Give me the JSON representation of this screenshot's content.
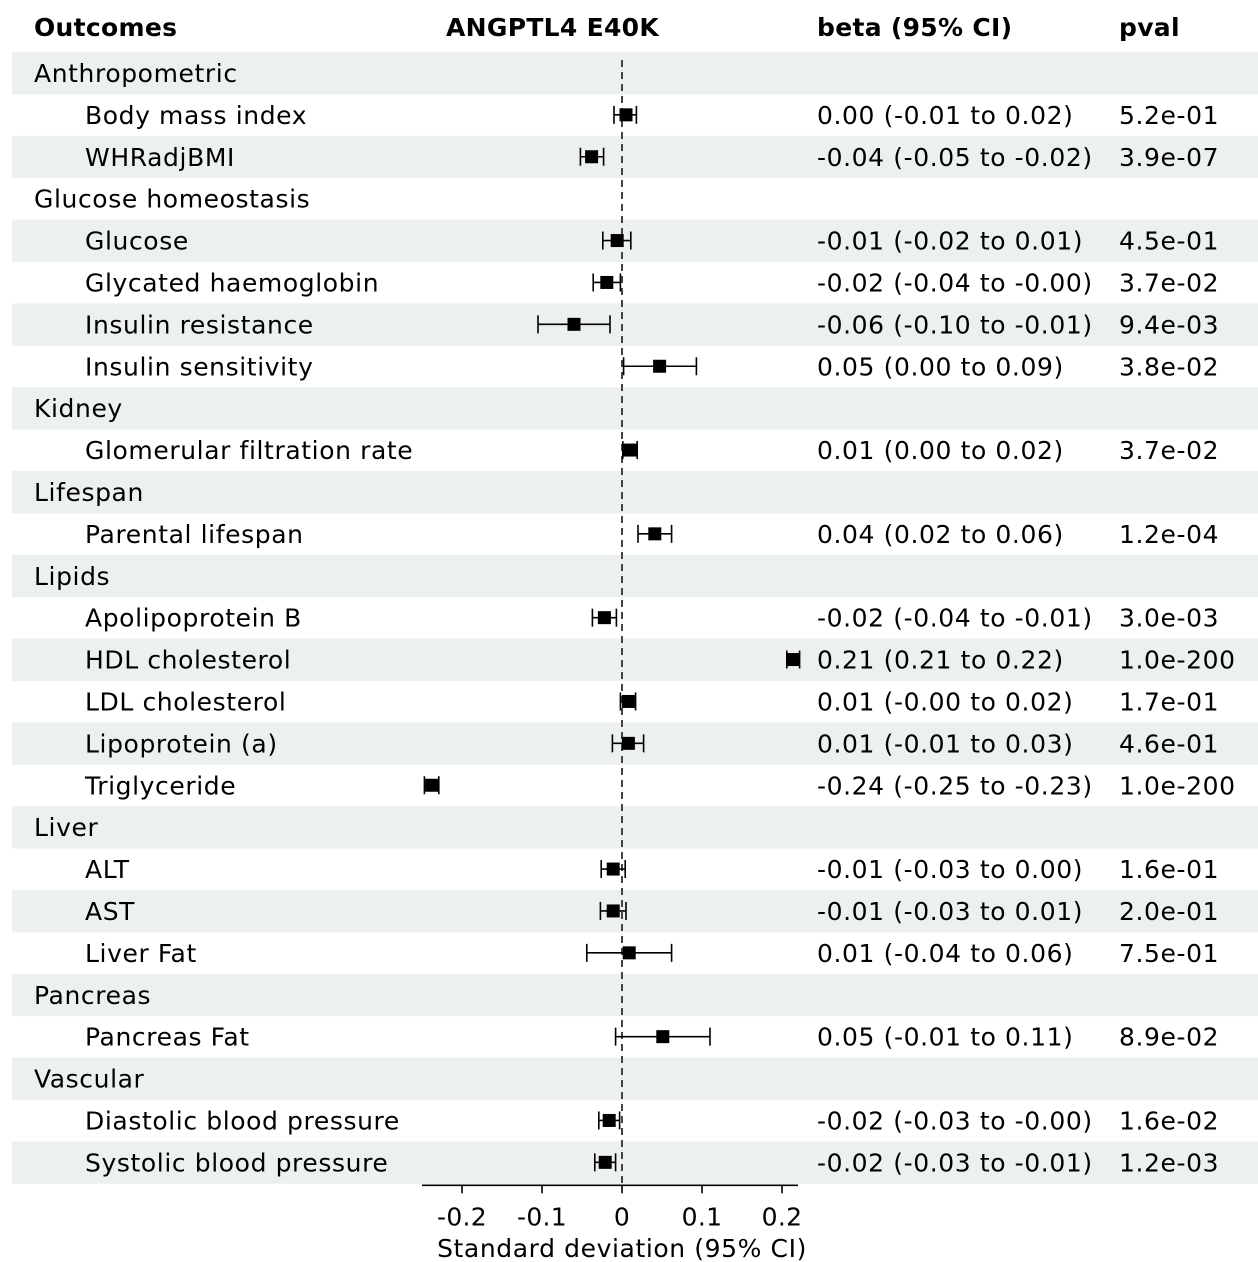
{
  "chart_data": {
    "type": "forest",
    "title": "ANGPTL4 E40K",
    "xlabel": "Standard deviation (95% CI)",
    "xlim": [
      -0.25,
      0.22
    ],
    "xticks": [
      -0.2,
      -0.1,
      0,
      0.1,
      0.2
    ],
    "xtick_labels": [
      "-0.2",
      "-0.1",
      "0",
      "0.1",
      "0.2"
    ],
    "reference_line": 0,
    "columns": {
      "outcomes": "Outcomes",
      "beta": "beta (95% CI)",
      "pval": "pval"
    },
    "rows": [
      {
        "group": "Anthropometric"
      },
      {
        "label": "Body mass index",
        "beta": 0.005,
        "lo": -0.01,
        "hi": 0.018,
        "beta_text": "0.00 (-0.01 to 0.02)",
        "pval": "5.2e-01"
      },
      {
        "label": "WHRadjBMI",
        "beta": -0.038,
        "lo": -0.052,
        "hi": -0.023,
        "beta_text": "-0.04 (-0.05 to -0.02)",
        "pval": "3.9e-07"
      },
      {
        "group": "Glucose homeostasis"
      },
      {
        "label": "Glucose",
        "beta": -0.006,
        "lo": -0.024,
        "hi": 0.011,
        "beta_text": "-0.01 (-0.02 to 0.01)",
        "pval": "4.5e-01"
      },
      {
        "label": "Glycated haemoglobin",
        "beta": -0.019,
        "lo": -0.036,
        "hi": -0.002,
        "beta_text": "-0.02 (-0.04 to -0.00)",
        "pval": "3.7e-02"
      },
      {
        "label": "Insulin resistance",
        "beta": -0.06,
        "lo": -0.105,
        "hi": -0.015,
        "beta_text": "-0.06 (-0.10 to -0.01)",
        "pval": "9.4e-03"
      },
      {
        "label": "Insulin sensitivity",
        "beta": 0.047,
        "lo": 0.002,
        "hi": 0.093,
        "beta_text": "0.05 (0.00 to 0.09)",
        "pval": "3.8e-02"
      },
      {
        "group": "Kidney"
      },
      {
        "label": "Glomerular filtration rate",
        "beta": 0.01,
        "lo": 0.001,
        "hi": 0.019,
        "beta_text": "0.01 (0.00 to 0.02)",
        "pval": "3.7e-02"
      },
      {
        "group": "Lifespan"
      },
      {
        "label": "Parental lifespan",
        "beta": 0.041,
        "lo": 0.02,
        "hi": 0.062,
        "beta_text": "0.04 (0.02 to 0.06)",
        "pval": "1.2e-04"
      },
      {
        "group": "Lipids"
      },
      {
        "label": "Apolipoprotein B",
        "beta": -0.022,
        "lo": -0.037,
        "hi": -0.007,
        "beta_text": "-0.02 (-0.04 to -0.01)",
        "pval": "3.0e-03"
      },
      {
        "label": "HDL cholesterol",
        "beta": 0.214,
        "lo": 0.206,
        "hi": 0.222,
        "beta_text": "0.21 (0.21 to 0.22)",
        "pval": "1.0e-200"
      },
      {
        "label": "LDL cholesterol",
        "beta": 0.008,
        "lo": -0.002,
        "hi": 0.017,
        "beta_text": "0.01 (-0.00 to 0.02)",
        "pval": "1.7e-01"
      },
      {
        "label": "Lipoprotein (a)",
        "beta": 0.008,
        "lo": -0.012,
        "hi": 0.027,
        "beta_text": "0.01 (-0.01 to 0.03)",
        "pval": "4.6e-01"
      },
      {
        "label": "Triglyceride",
        "beta": -0.238,
        "lo": -0.247,
        "hi": -0.229,
        "beta_text": "-0.24 (-0.25 to -0.23)",
        "pval": "1.0e-200"
      },
      {
        "group": "Liver"
      },
      {
        "label": "ALT",
        "beta": -0.011,
        "lo": -0.026,
        "hi": 0.004,
        "beta_text": "-0.01 (-0.03 to 0.00)",
        "pval": "1.6e-01"
      },
      {
        "label": "AST",
        "beta": -0.011,
        "lo": -0.027,
        "hi": 0.005,
        "beta_text": "-0.01 (-0.03 to 0.01)",
        "pval": "2.0e-01"
      },
      {
        "label": "Liver Fat",
        "beta": 0.009,
        "lo": -0.044,
        "hi": 0.062,
        "beta_text": "0.01 (-0.04 to 0.06)",
        "pval": "7.5e-01"
      },
      {
        "group": "Pancreas"
      },
      {
        "label": "Pancreas Fat",
        "beta": 0.051,
        "lo": -0.008,
        "hi": 0.11,
        "beta_text": "0.05 (-0.01 to 0.11)",
        "pval": "8.9e-02"
      },
      {
        "group": "Vascular"
      },
      {
        "label": "Diastolic blood pressure",
        "beta": -0.016,
        "lo": -0.029,
        "hi": -0.003,
        "beta_text": "-0.02 (-0.03 to -0.00)",
        "pval": "1.6e-02"
      },
      {
        "label": "Systolic blood pressure",
        "beta": -0.021,
        "lo": -0.034,
        "hi": -0.008,
        "beta_text": "-0.02 (-0.03 to -0.01)",
        "pval": "1.2e-03"
      }
    ]
  }
}
